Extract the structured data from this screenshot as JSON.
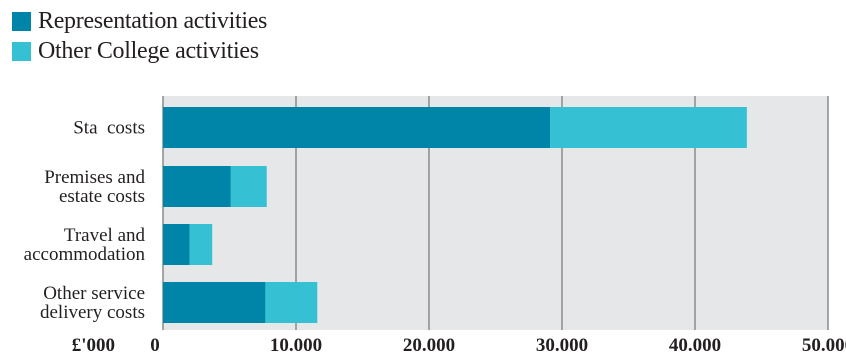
{
  "chart_data": {
    "type": "bar",
    "orientation": "horizontal",
    "stacked": true,
    "categories": [
      [
        "Sta costs"
      ],
      [
        "Premises and",
        "estate costs"
      ],
      [
        "Travel and",
        "accommodation"
      ],
      [
        "Other service",
        "delivery costs"
      ]
    ],
    "series": [
      {
        "name": "Representation activities",
        "color": "#0085a9",
        "values": [
          29100,
          5100,
          2000,
          7700
        ]
      },
      {
        "name": "Other College activities",
        "color": "#35c0d4",
        "values": [
          14800,
          2700,
          1700,
          3900
        ]
      }
    ],
    "xlim": [
      0,
      50000
    ],
    "xticks": [
      "0",
      "10.000",
      "20.000",
      "30.000",
      "40.000",
      "50.000"
    ],
    "xunit_label": "£'000",
    "grid": true,
    "legend_position": "top-left"
  }
}
